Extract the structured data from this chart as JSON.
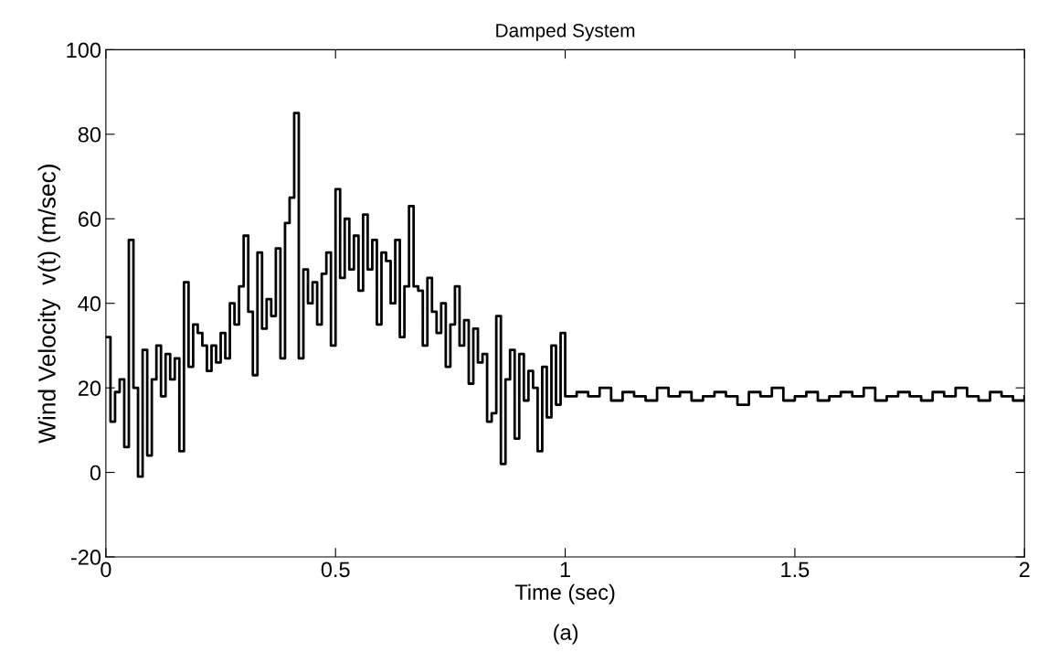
{
  "chart_data": {
    "type": "step",
    "title": "Damped System",
    "xlabel": "Time (sec)",
    "ylabel": "Wind Velocity  v(t) (m/sec)",
    "annotations": [
      "(a)"
    ],
    "x": [
      0,
      0.01,
      0.02,
      0.03,
      0.04,
      0.05,
      0.06,
      0.07,
      0.08,
      0.09,
      0.1,
      0.11,
      0.12,
      0.13,
      0.14,
      0.15,
      0.16,
      0.17,
      0.18,
      0.19,
      0.2,
      0.21,
      0.22,
      0.23,
      0.24,
      0.25,
      0.26,
      0.27,
      0.28,
      0.29,
      0.3,
      0.31,
      0.32,
      0.33,
      0.34,
      0.35,
      0.36,
      0.37,
      0.38,
      0.39,
      0.4,
      0.41,
      0.42,
      0.43,
      0.44,
      0.45,
      0.46,
      0.47,
      0.48,
      0.49,
      0.5,
      0.51,
      0.52,
      0.53,
      0.54,
      0.55,
      0.56,
      0.57,
      0.58,
      0.59,
      0.6,
      0.61,
      0.62,
      0.63,
      0.64,
      0.65,
      0.66,
      0.67,
      0.68,
      0.69,
      0.7,
      0.71,
      0.72,
      0.73,
      0.74,
      0.75,
      0.76,
      0.77,
      0.78,
      0.79,
      0.8,
      0.81,
      0.82,
      0.83,
      0.84,
      0.85,
      0.86,
      0.87,
      0.88,
      0.89,
      0.9,
      0.91,
      0.92,
      0.93,
      0.94,
      0.95,
      0.96,
      0.97,
      0.98,
      0.99,
      1.0,
      1.025,
      1.05,
      1.075,
      1.1,
      1.125,
      1.15,
      1.175,
      1.2,
      1.225,
      1.25,
      1.275,
      1.3,
      1.325,
      1.35,
      1.375,
      1.4,
      1.425,
      1.45,
      1.475,
      1.5,
      1.525,
      1.55,
      1.575,
      1.6,
      1.625,
      1.65,
      1.675,
      1.7,
      1.725,
      1.75,
      1.775,
      1.8,
      1.825,
      1.85,
      1.875,
      1.9,
      1.925,
      1.95,
      1.975,
      2.0
    ],
    "series": [
      {
        "color": "#000000",
        "values": [
          32,
          12,
          19,
          22,
          6,
          55,
          20,
          -1,
          29,
          4,
          22,
          30,
          18,
          28,
          22,
          27,
          5,
          45,
          25,
          35,
          33,
          30,
          24,
          30,
          26,
          33,
          27,
          40,
          35,
          44,
          56,
          38,
          23,
          52,
          34,
          41,
          37,
          53,
          27,
          59,
          65,
          85,
          27,
          48,
          40,
          45,
          35,
          47,
          52,
          30,
          67,
          46,
          60,
          48,
          56,
          43,
          61,
          48,
          55,
          35,
          52,
          50,
          40,
          55,
          32,
          44,
          63,
          44,
          43,
          30,
          46,
          38,
          33,
          40,
          25,
          35,
          44,
          30,
          36,
          21,
          34,
          26,
          28,
          12,
          14,
          37,
          2,
          22,
          29,
          8,
          28,
          17,
          24,
          20,
          5,
          25,
          13,
          30,
          16,
          33,
          18,
          19,
          18,
          20,
          17,
          19,
          18,
          17,
          20,
          18,
          19,
          17,
          18,
          19,
          18,
          16,
          19,
          18,
          20,
          17,
          18,
          19,
          17,
          18,
          19,
          18,
          20,
          17,
          18,
          19,
          18,
          17,
          19,
          18,
          20,
          18,
          17,
          19,
          18,
          17,
          18
        ]
      }
    ],
    "xlim": [
      0,
      2
    ],
    "xticks": [
      0,
      0.5,
      1,
      1.5,
      2
    ],
    "ylim": [
      -20,
      100
    ],
    "yticks": [
      -20,
      0,
      20,
      40,
      60,
      80,
      100
    ],
    "grid": false,
    "legend": false
  }
}
